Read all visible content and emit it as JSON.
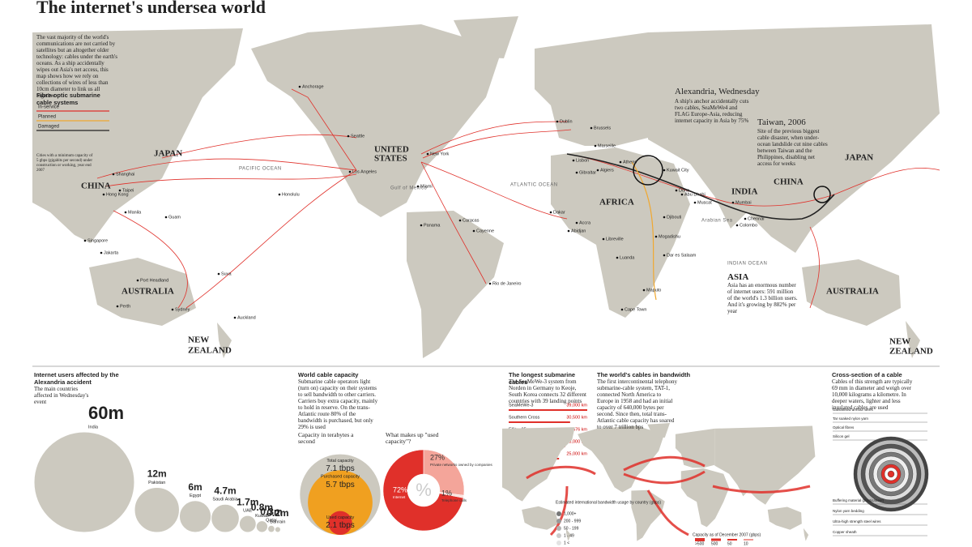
{
  "title": "The internet's undersea world",
  "intro": "The vast majority of the world's communications are not carried by satellites but an altogether older technology: cables under the earth's oceans. As a ship accidentally wipes out Asia's net access, this map shows how we rely on collections of wires of less than 10cm diameter to link us all together",
  "legend": {
    "title": "Fibre-optic submarine cable systems",
    "items": [
      {
        "label": "In-service",
        "color": "#e0302a"
      },
      {
        "label": "Planned",
        "color": "#f0a830"
      },
      {
        "label": "Damaged",
        "color": "#222222"
      }
    ],
    "note": "Cities with a minimum capacity of 5 gbps (gigabits per second) under construction or working, year end 2007"
  },
  "map": {
    "labels": [
      "JAPAN",
      "CHINA",
      "AUSTRALIA",
      "NEW",
      "ZEALAND",
      "UNITED",
      "STATES",
      "AFRICA",
      "INDIA",
      "CHINA",
      "JAPAN",
      "AUSTRALIA",
      "NEW",
      "ZEALAND",
      "PACIFIC OCEAN",
      "ATLANTIC OCEAN",
      "INDIAN OCEAN",
      "Gulf of Mexico",
      "Arabian Sea"
    ],
    "cities": [
      "Anchorage",
      "Seattle",
      "Los Angeles",
      "New York",
      "Miami",
      "Honolulu",
      "Guam",
      "Hong Kong",
      "Shanghai",
      "Taipei",
      "Manila",
      "Singapore",
      "Jakarta",
      "Perth",
      "Sydney",
      "Auckland",
      "Suva",
      "Port Headland",
      "Dublin",
      "Brussels",
      "Lisbon",
      "Marseille",
      "Gibraltar",
      "Algiers",
      "Athens",
      "Kuwait City",
      "Doha",
      "Abu Dhabi",
      "Muscat",
      "Djibouti",
      "Mumbai",
      "Chennai",
      "Colombo",
      "Mogadishu",
      "Dar es Salaam",
      "Maputo",
      "Cape Town",
      "Luanda",
      "Libreville",
      "Abidjan",
      "Accra",
      "Dakar",
      "Caracas",
      "Panama",
      "Rio de Janeiro",
      "Cayenne"
    ]
  },
  "annotations": [
    {
      "title": "Alexandria, Wednesday",
      "text": "A ship's anchor accidentally cuts two cables, SeaMeWe4 and FLAG Europe-Asia, reducing internet capacity in Asia by 75%"
    },
    {
      "title": "Taiwan, 2006",
      "text": "Site of the previous biggest cable disaster, when under-ocean landslide cut nine cables between Taiwan and the Philippines, disabling net access for weeks"
    },
    {
      "title": "ASIA",
      "text": "Asia has an enormous number of internet users: 591 million of the world's 1.3 billion users. And it's growing by 882% per year"
    }
  ],
  "users": {
    "title": "Internet users affected by the Alexandria accident",
    "subtitle": "The main countries affected in Wednesday's event",
    "items": [
      {
        "name": "India",
        "value": 60,
        "label": "60m"
      },
      {
        "name": "Pakistan",
        "value": 12,
        "label": "12m"
      },
      {
        "name": "Egypt",
        "value": 6,
        "label": "6m"
      },
      {
        "name": "Saudi Arabia",
        "value": 4.7,
        "label": "4.7m"
      },
      {
        "name": "UAE",
        "value": 1.7,
        "label": "1.7m"
      },
      {
        "name": "Kuwait",
        "value": 0.8,
        "label": "0.8m"
      },
      {
        "name": "Qatar",
        "value": 0.3,
        "label": "0.3m"
      },
      {
        "name": "Bahrain",
        "value": 0.2,
        "label": "0.2m"
      }
    ]
  },
  "capacity": {
    "title": "World cable capacity",
    "text": "Submarine cable operators light (turn on) capacity on their systems to sell bandwidth to other carriers. Carriers buy extra capacity, mainly to hold in reserve. On the trans-Atlantic route 80% of the bandwidth is purchased, but only 29% is used",
    "chart_title": "Capacity in terabytes a second",
    "items": [
      {
        "name": "Total capacity",
        "value": 7.1,
        "label": "7.1 tbps",
        "color": "#ccc9bf"
      },
      {
        "name": "Purchased capacity",
        "value": 5.7,
        "label": "5.7 tbps",
        "color": "#f0a020"
      },
      {
        "name": "Used capacity",
        "value": 2.1,
        "label": "2.1 tbps",
        "color": "#e0302a"
      }
    ]
  },
  "usage": {
    "title": "What makes up \"used capacity\"?",
    "items": [
      {
        "name": "Internet",
        "value": 72,
        "label": "72%",
        "color": "#e0302a"
      },
      {
        "name": "Private networks owned by companies",
        "value": 27,
        "label": "27%",
        "color": "#f4a59a"
      },
      {
        "name": "Telephone calls",
        "value": 1,
        "label": "1%",
        "color": "#fbe3dd"
      }
    ]
  },
  "longest": {
    "title": "The longest submarine cables",
    "text": "The SeaMeWe-3 system from Norden in Germany to Keoje, South Korea connects 32 different countries with 39 landing points",
    "items": [
      {
        "name": "SeaMeWe-3",
        "value": 39000,
        "label": "39,000 km"
      },
      {
        "name": "Southern Cross",
        "value": 30500,
        "label": "30,500 km"
      },
      {
        "name": "Ellitra-05",
        "value": 30476,
        "label": "30,476 km"
      },
      {
        "name": "FLAG Europe-Asia",
        "value": 28000,
        "label": "28,000 km"
      },
      {
        "name": "South America-1",
        "value": 25000,
        "label": "25,000 km"
      }
    ]
  },
  "bandwidth": {
    "title": "The world's cables in bandwidth",
    "text": "The first intercontinental telephony submarine-cable system, TAT-1, connected North America to Europe in 1958 and had an initial capacity of 640,000 bytes per second. Since then, total trans-Atlantic cable capacity has soared to over 7 trillion bps",
    "usage_title": "Estimated international bandwidth usage by country (gbps)",
    "usage_bins": [
      "1,000+",
      "200 - 999",
      "50 - 199",
      "1 - 49",
      "1 <"
    ],
    "capacity_title": "Capacity as of December 2007 (gbps)",
    "capacity_bins": [
      ">500",
      "500",
      "50",
      "10"
    ]
  },
  "cross_section": {
    "title": "Cross-section of a cable",
    "text": "Cables of this strength are typically 69 mm in diameter and weigh over 10,000 kilograms a kilometre. In deeper waters, lighter and less insulated cables are used",
    "layers": [
      "Galvanised armour wires",
      "Tar soaked nylon yarn",
      "Optical fibres",
      "Silicon gel",
      "Buffering material (plastic/steel)",
      "Nylon yarn bedding",
      "Ultra-high strength steel wires",
      "Copper sheath"
    ]
  }
}
